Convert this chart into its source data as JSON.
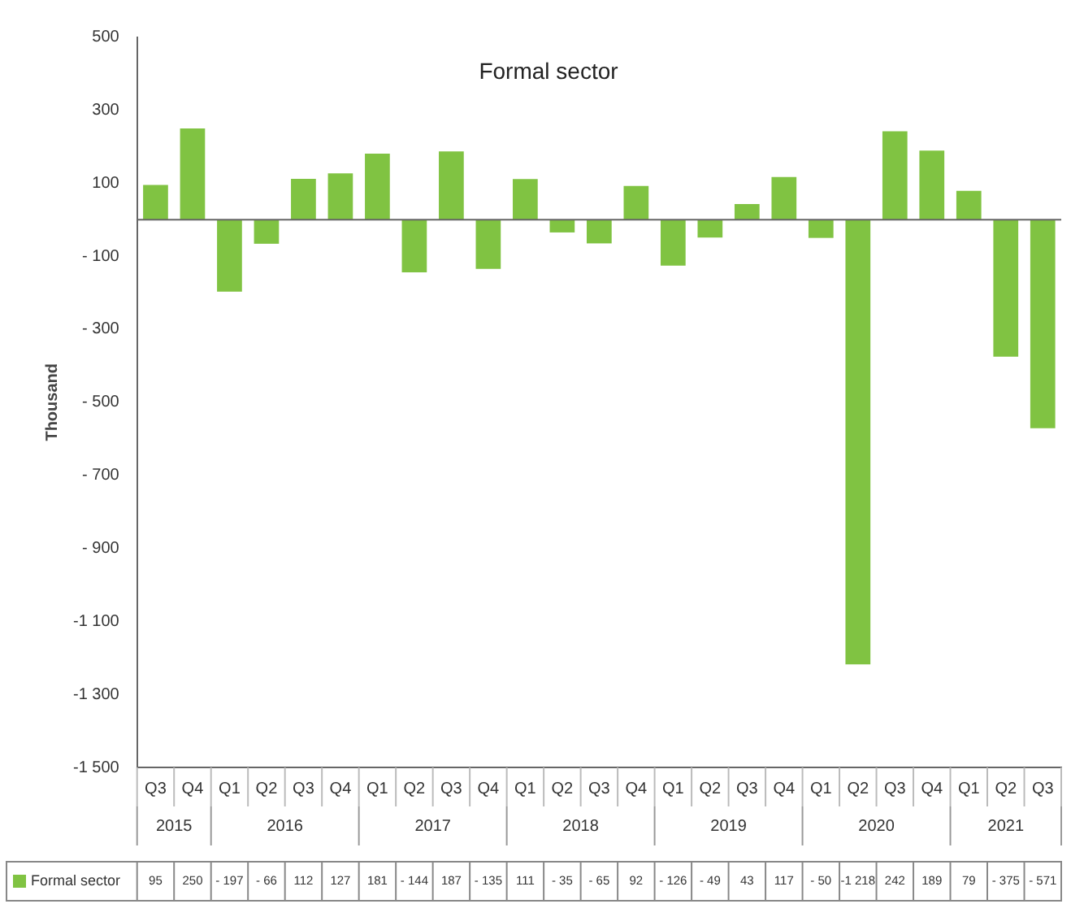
{
  "chart_data": {
    "type": "bar",
    "title": "Formal sector",
    "ylabel": "Thousand",
    "categories": [
      "Q3",
      "Q4",
      "Q1",
      "Q2",
      "Q3",
      "Q4",
      "Q1",
      "Q2",
      "Q3",
      "Q4",
      "Q1",
      "Q2",
      "Q3",
      "Q4",
      "Q1",
      "Q2",
      "Q3",
      "Q4",
      "Q1",
      "Q2",
      "Q3",
      "Q4",
      "Q1",
      "Q2",
      "Q3"
    ],
    "annotations": [
      "2015",
      "2016",
      "2017",
      "2018",
      "2019",
      "2020",
      "2021"
    ],
    "series": [
      {
        "name": "Formal sector",
        "color": "#80c342",
        "values": [
          95,
          250,
          -197,
          -66,
          112,
          127,
          181,
          -144,
          187,
          -135,
          111,
          -35,
          -65,
          92,
          -126,
          -49,
          43,
          117,
          -50,
          -1218,
          242,
          189,
          79,
          -375,
          -571
        ],
        "value_labels": [
          "95",
          "250",
          "- 197",
          "- 66",
          "112",
          "127",
          "181",
          "- 144",
          "187",
          "- 135",
          "111",
          "- 35",
          "- 65",
          "92",
          "- 126",
          "- 49",
          "43",
          "117",
          "- 50",
          "-1 218",
          "242",
          "189",
          "79",
          "- 375",
          "- 571"
        ]
      }
    ],
    "ylim": [
      -1500,
      500
    ],
    "yticks": [
      500,
      300,
      100,
      {
        "value": -100,
        "label": "- 100"
      },
      {
        "value": -300,
        "label": "- 300"
      },
      {
        "value": -500,
        "label": "- 500"
      },
      {
        "value": -700,
        "label": "- 700"
      },
      {
        "value": -900,
        "label": "- 900"
      },
      {
        "value": -1100,
        "label": "-1 100"
      },
      {
        "value": -1300,
        "label": "-1 300"
      },
      {
        "value": -1500,
        "label": "-1 500"
      }
    ],
    "grid": false,
    "legend": "bottom"
  }
}
